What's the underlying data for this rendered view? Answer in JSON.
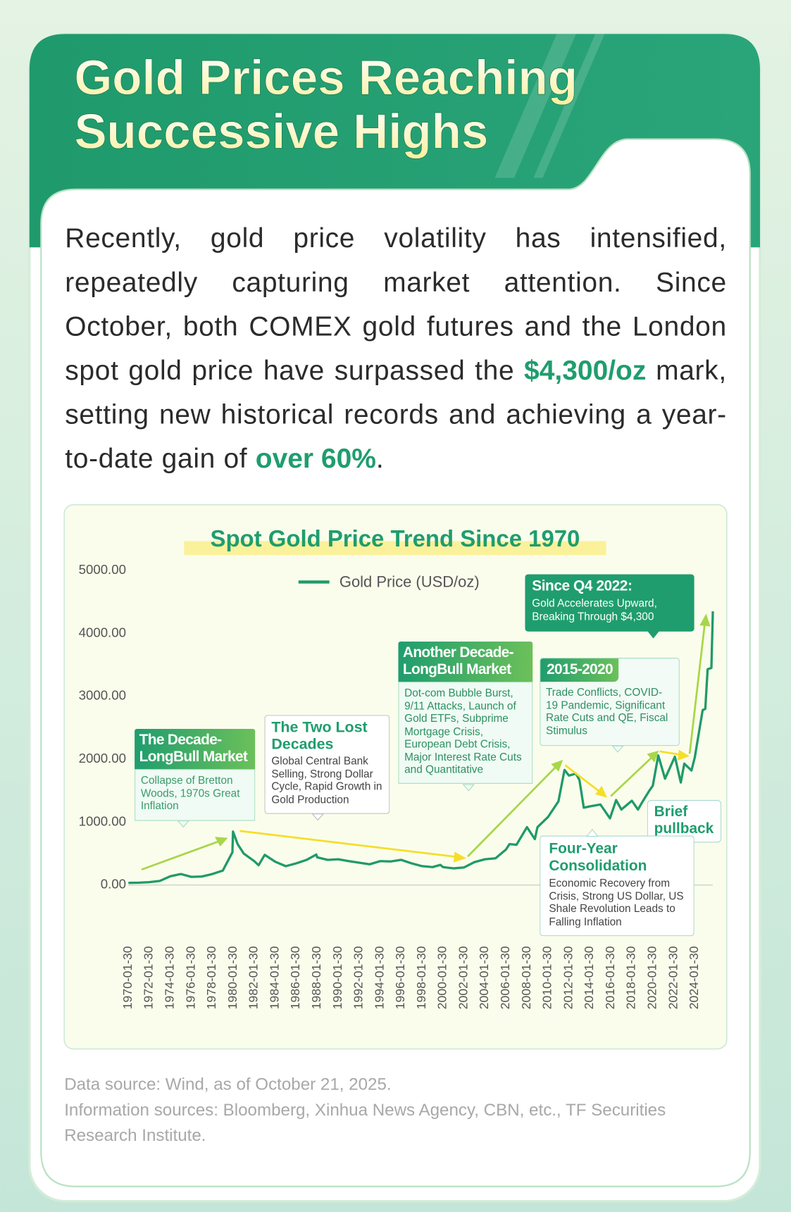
{
  "header": {
    "title_lines": [
      "Gold Prices Reaching",
      "Successive Highs"
    ]
  },
  "intro": {
    "parts": [
      {
        "text": "Recently, gold price volatility has intensified, repeatedly capturing market attention. Since October, both COMEX gold futures and the London spot gold price have surpassed the ",
        "emphasis": false
      },
      {
        "text": "$4,300/oz",
        "emphasis": true
      },
      {
        "text": " mark, setting new historical records and achieving a year-to-date gain of ",
        "emphasis": false
      },
      {
        "text": "over 60%",
        "emphasis": true
      },
      {
        "text": ".",
        "emphasis": false
      }
    ]
  },
  "chart_data": {
    "type": "line",
    "title": "Spot Gold Price Trend Since 1970",
    "x": [
      "1970-01-30",
      "1971-01-30",
      "1972-01-30",
      "1973-01-30",
      "1974-01-30",
      "1975-01-30",
      "1976-01-30",
      "1977-01-30",
      "1978-01-30",
      "1979-01-30",
      "1979-12-31",
      "1980-01-21",
      "1980-06-30",
      "1981-01-30",
      "1982-01-30",
      "1982-06-30",
      "1983-01-30",
      "1984-01-30",
      "1985-01-30",
      "1986-01-30",
      "1987-01-30",
      "1987-12-30",
      "1988-01-30",
      "1989-01-30",
      "1990-01-30",
      "1991-01-30",
      "1992-01-30",
      "1993-01-30",
      "1994-01-30",
      "1995-01-30",
      "1996-01-30",
      "1997-01-30",
      "1998-01-30",
      "1999-01-30",
      "1999-10-30",
      "2000-01-30",
      "2001-01-30",
      "2002-01-30",
      "2003-01-30",
      "2004-01-30",
      "2005-01-30",
      "2006-01-30",
      "2006-05-30",
      "2007-01-30",
      "2008-01-30",
      "2008-10-30",
      "2009-01-30",
      "2010-01-30",
      "2011-01-30",
      "2011-08-30",
      "2012-01-30",
      "2012-09-30",
      "2013-01-30",
      "2013-06-30",
      "2014-01-30",
      "2015-01-30",
      "2015-12-30",
      "2016-07-30",
      "2017-01-30",
      "2018-01-30",
      "2018-08-30",
      "2019-01-30",
      "2019-09-30",
      "2020-01-30",
      "2020-08-06",
      "2021-03-30",
      "2022-03-08",
      "2022-09-30",
      "2023-01-30",
      "2023-10-06",
      "2024-01-30",
      "2024-10-30",
      "2025-01-30",
      "2025-04-21",
      "2025-08-30",
      "2025-10-20"
    ],
    "series": [
      {
        "name": "Gold Price (USD/oz)",
        "color": "#1f9a6a",
        "values": [
          35,
          38,
          46,
          65,
          140,
          175,
          130,
          135,
          175,
          230,
          520,
          850,
          650,
          500,
          380,
          315,
          480,
          370,
          300,
          345,
          400,
          485,
          440,
          400,
          410,
          380,
          355,
          330,
          380,
          375,
          400,
          345,
          300,
          285,
          320,
          285,
          265,
          280,
          365,
          410,
          425,
          565,
          650,
          640,
          920,
          730,
          920,
          1080,
          1330,
          1830,
          1740,
          1770,
          1670,
          1230,
          1250,
          1280,
          1060,
          1350,
          1200,
          1340,
          1200,
          1320,
          1500,
          1580,
          2060,
          1690,
          2040,
          1630,
          1930,
          1820,
          2030,
          2780,
          2800,
          3430,
          3450,
          4350
        ]
      }
    ],
    "xlim": [
      "1970-01-30",
      "2025-10-20"
    ],
    "xticks": [
      "1970-01-30",
      "1972-01-30",
      "1974-01-30",
      "1976-01-30",
      "1978-01-30",
      "1980-01-30",
      "1982-01-30",
      "1984-01-30",
      "1986-01-30",
      "1988-01-30",
      "1990-01-30",
      "1992-01-30",
      "1994-01-30",
      "1996-01-30",
      "1998-01-30",
      "2000-01-30",
      "2002-01-30",
      "2004-01-30",
      "2006-01-30",
      "2008-01-30",
      "2010-01-30",
      "2012-01-30",
      "2014-01-30",
      "2016-01-30",
      "2018-01-30",
      "2020-01-30",
      "2022-01-30",
      "2024-01-30"
    ],
    "ylim": [
      0,
      5000
    ],
    "yticks": [
      {
        "value": 0,
        "label": "0.00"
      },
      {
        "value": 1000,
        "label": "1000.00"
      },
      {
        "value": 2000,
        "label": "2000.00"
      },
      {
        "value": 3000,
        "label": "3000.00"
      },
      {
        "value": 4000,
        "label": "4000.00"
      },
      {
        "value": 5000,
        "label": "5000.00"
      }
    ],
    "grid": false,
    "annotations": [
      {
        "title": "The Decade-LongBull Market",
        "text": "Collapse of Bretton Woods, 1970s Great Inflation"
      },
      {
        "title": "The Two Lost Decades",
        "text": "Global Central Bank Selling, Strong Dollar Cycle, Rapid Growth in Gold Production"
      },
      {
        "title": "Another Decade-LongBull Market",
        "text": "Dot-com Bubble Burst, 9/11 Attacks, Launch of Gold ETFs, Subprime Mortgage Crisis, European Debt Crisis, Major Interest Rate Cuts and Quantitative"
      },
      {
        "title": "2015-2020",
        "text": "Trade Conflicts, COVID-19 Pandemic, Significant Rate Cuts and QE, Fiscal Stimulus"
      },
      {
        "title": "Since Q4 2022:",
        "text": "Gold Accelerates Upward, Breaking Through $4,300"
      },
      {
        "title": "Brief pullback"
      },
      {
        "title": "Four-Year Consolidation",
        "text": "Economic Recovery from Crisis, Strong US Dollar, US Shale Revolution Leads to Falling Inflation"
      }
    ]
  },
  "footer": {
    "lines": [
      "Data source: Wind, as of October 21, 2025.",
      "Information sources: Bloomberg, Xinhua News Agency, CBN, etc., TF Securities Research Institute."
    ]
  }
}
